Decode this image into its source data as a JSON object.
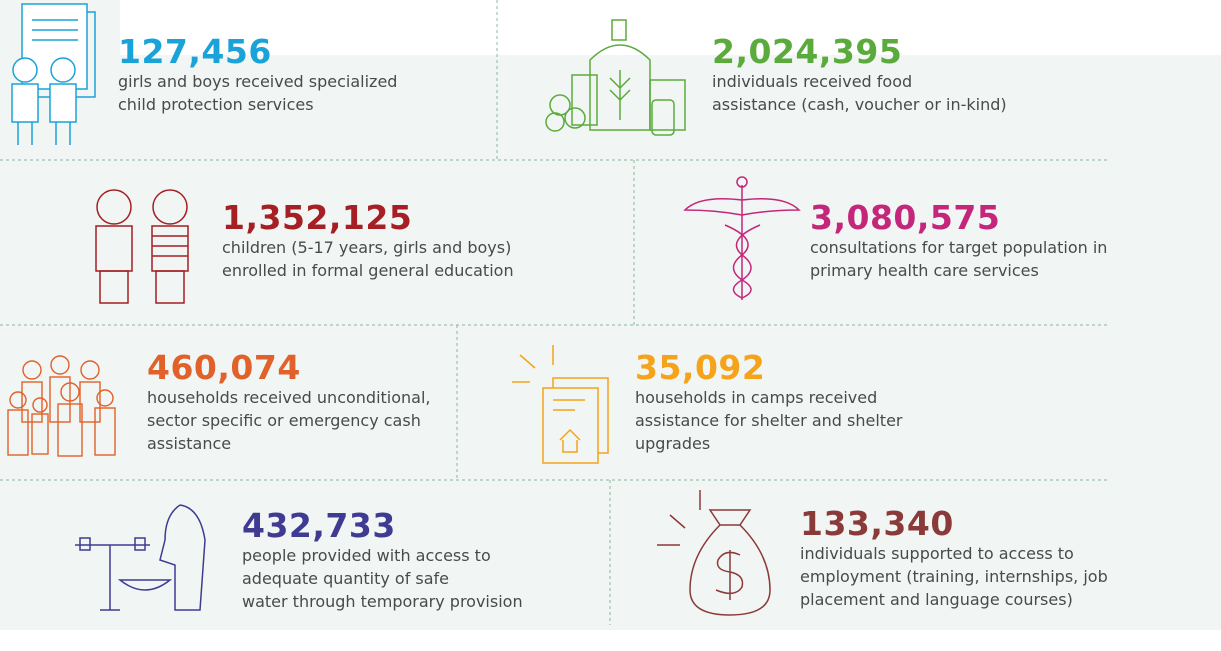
{
  "items": [
    {
      "number": "127,456",
      "color": "#1aa3d9",
      "lines": [
        "girls and boys received specialized",
        "child protection services"
      ]
    },
    {
      "number": "2,024,395",
      "color": "#5aab3c",
      "lines": [
        "individuals received  food",
        "assistance (cash, voucher or in-kind)"
      ]
    },
    {
      "number": "1,352,125",
      "color": "#a51f24",
      "lines": [
        "children (5-17 years, girls and boys)",
        "enrolled in formal general education"
      ]
    },
    {
      "number": "3,080,575",
      "color": "#c4267b",
      "lines": [
        "consultations for target population in",
        "primary health care services"
      ]
    },
    {
      "number": "460,074",
      "color": "#e0612a",
      "lines": [
        "households received unconditional,",
        "sector specific or emergency cash",
        "assistance"
      ]
    },
    {
      "number": "35,092",
      "color": "#f5a31a",
      "lines": [
        "households in camps received",
        "assistance for shelter and shelter",
        "upgrades"
      ]
    },
    {
      "number": "432,733",
      "color": "#3f3b93",
      "lines": [
        "people provided with access to",
        "adequate quantity of safe",
        "water through temporary provision"
      ]
    },
    {
      "number": "133,340",
      "color": "#8b3a3a",
      "lines": [
        "individuals supported to access to",
        "employment (training, internships, job",
        "placement and language courses)"
      ]
    }
  ]
}
